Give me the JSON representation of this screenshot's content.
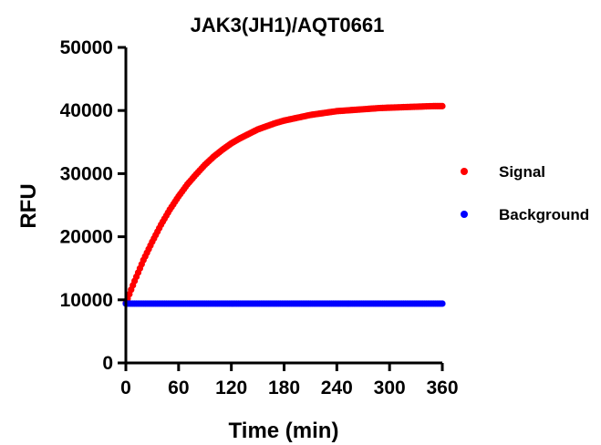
{
  "chart_data": {
    "type": "scatter",
    "title": "JAK3(JH1)/AQT0661",
    "xlabel": "Time (min)",
    "ylabel": "RFU",
    "xlim": [
      0,
      360
    ],
    "ylim": [
      0,
      50000
    ],
    "x_ticks": [
      "0",
      "60",
      "120",
      "180",
      "240",
      "300",
      "360"
    ],
    "y_ticks": [
      "0",
      "10000",
      "20000",
      "30000",
      "40000",
      "50000"
    ],
    "grid": false,
    "legend_position": "right",
    "series": [
      {
        "name": "Signal",
        "color": "#ff0000",
        "x": [
          0,
          10,
          20,
          30,
          40,
          50,
          60,
          70,
          80,
          90,
          100,
          110,
          120,
          130,
          140,
          150,
          160,
          170,
          180,
          190,
          200,
          210,
          220,
          230,
          240,
          250,
          260,
          270,
          280,
          290,
          300,
          310,
          320,
          330,
          340,
          350,
          360
        ],
        "values": [
          9500,
          13000,
          16300,
          19200,
          21900,
          24300,
          26400,
          28300,
          29900,
          31400,
          32700,
          33800,
          34800,
          35600,
          36300,
          37000,
          37500,
          38000,
          38400,
          38700,
          39000,
          39300,
          39500,
          39700,
          39900,
          40000,
          40100,
          40200,
          40300,
          40400,
          40450,
          40500,
          40550,
          40600,
          40650,
          40700,
          40700
        ]
      },
      {
        "name": "Background",
        "color": "#0000ff",
        "x": [
          0,
          10,
          20,
          30,
          40,
          50,
          60,
          70,
          80,
          90,
          100,
          110,
          120,
          130,
          140,
          150,
          160,
          170,
          180,
          190,
          200,
          210,
          220,
          230,
          240,
          250,
          260,
          270,
          280,
          290,
          300,
          310,
          320,
          330,
          340,
          350,
          360
        ],
        "values": [
          9400,
          9400,
          9400,
          9400,
          9400,
          9400,
          9400,
          9400,
          9400,
          9400,
          9400,
          9400,
          9400,
          9400,
          9400,
          9400,
          9400,
          9400,
          9400,
          9400,
          9400,
          9400,
          9400,
          9400,
          9400,
          9400,
          9400,
          9400,
          9400,
          9400,
          9400,
          9400,
          9400,
          9400,
          9400,
          9400,
          9400
        ]
      }
    ]
  }
}
